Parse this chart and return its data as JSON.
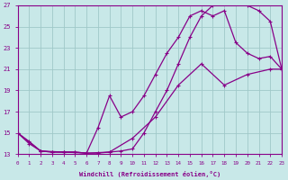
{
  "xlabel": "Windchill (Refroidissement éolien,°C)",
  "bg_color": "#c8e8e8",
  "grid_color": "#a0c8c8",
  "line_color": "#880088",
  "xmin": 0,
  "xmax": 23,
  "ymin": 13,
  "ymax": 27,
  "yticks": [
    13,
    15,
    17,
    19,
    21,
    23,
    25,
    27
  ],
  "xticks": [
    0,
    1,
    2,
    3,
    4,
    5,
    6,
    7,
    8,
    9,
    10,
    11,
    12,
    13,
    14,
    15,
    16,
    17,
    18,
    19,
    20,
    21,
    22,
    23
  ],
  "line1_x": [
    0,
    1,
    2,
    3,
    4,
    5,
    6,
    7,
    8,
    9,
    10,
    11,
    12,
    13,
    14,
    15,
    16,
    17,
    18,
    19,
    20,
    21,
    22,
    23
  ],
  "line1_y": [
    15.0,
    14.0,
    13.3,
    13.2,
    13.2,
    13.2,
    13.1,
    13.1,
    13.2,
    13.3,
    13.5,
    15.0,
    17.0,
    19.0,
    21.5,
    24.0,
    26.0,
    27.0,
    27.2,
    27.2,
    27.0,
    26.5,
    25.5,
    21.0
  ],
  "line2_x": [
    0,
    1,
    2,
    3,
    4,
    5,
    6,
    7,
    8,
    9,
    10,
    11,
    12,
    13,
    14,
    15,
    16,
    17,
    18,
    19,
    20,
    21,
    22,
    23
  ],
  "line2_y": [
    15.0,
    14.2,
    13.3,
    13.2,
    13.2,
    13.2,
    13.1,
    15.5,
    18.5,
    16.5,
    17.0,
    18.5,
    20.5,
    22.5,
    24.0,
    26.0,
    26.5,
    26.0,
    26.5,
    23.5,
    22.5,
    22.0,
    22.2,
    21.0
  ],
  "line3_x": [
    0,
    2,
    4,
    6,
    8,
    10,
    12,
    14,
    16,
    18,
    20,
    22,
    23
  ],
  "line3_y": [
    15.0,
    13.3,
    13.2,
    13.1,
    13.2,
    14.5,
    16.5,
    19.5,
    21.5,
    19.5,
    20.5,
    21.0,
    21.0
  ]
}
